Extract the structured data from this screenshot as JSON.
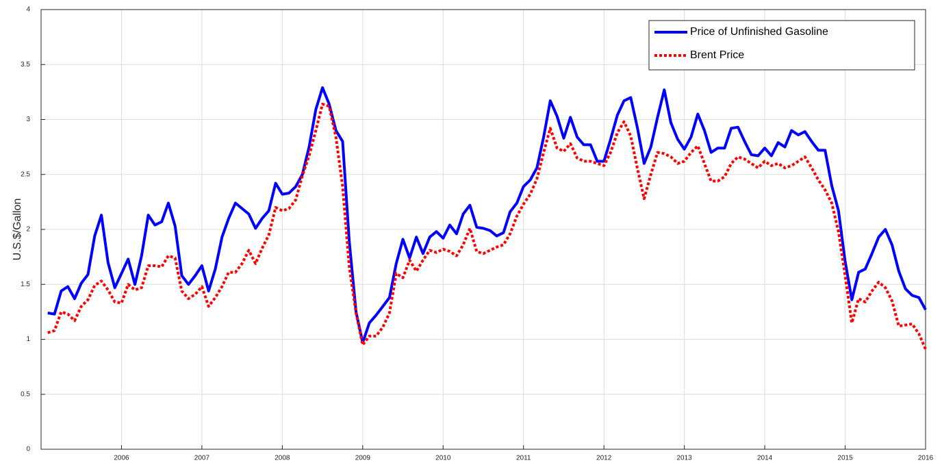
{
  "chart_data": {
    "type": "line",
    "ylabel": "U.S.$/Gallon",
    "xlim": [
      2005,
      2016
    ],
    "ylim": [
      0,
      4
    ],
    "xticks": [
      2006,
      2007,
      2008,
      2009,
      2010,
      2011,
      2012,
      2013,
      2014,
      2015,
      2016
    ],
    "yticks": [
      0,
      0.5,
      1,
      1.5,
      2,
      2.5,
      3,
      3.5,
      4
    ],
    "grid": true,
    "legend": "upper right",
    "x": [
      2005.083,
      2005.167,
      2005.25,
      2005.333,
      2005.417,
      2005.5,
      2005.583,
      2005.667,
      2005.75,
      2005.833,
      2005.917,
      2006,
      2006.083,
      2006.167,
      2006.25,
      2006.333,
      2006.417,
      2006.5,
      2006.583,
      2006.667,
      2006.75,
      2006.833,
      2006.917,
      2007,
      2007.083,
      2007.167,
      2007.25,
      2007.333,
      2007.417,
      2007.5,
      2007.583,
      2007.667,
      2007.75,
      2007.833,
      2007.917,
      2008,
      2008.083,
      2008.167,
      2008.25,
      2008.333,
      2008.417,
      2008.5,
      2008.583,
      2008.667,
      2008.75,
      2008.833,
      2008.917,
      2009,
      2009.083,
      2009.167,
      2009.25,
      2009.333,
      2009.417,
      2009.5,
      2009.583,
      2009.667,
      2009.75,
      2009.833,
      2009.917,
      2010,
      2010.083,
      2010.167,
      2010.25,
      2010.333,
      2010.417,
      2010.5,
      2010.583,
      2010.667,
      2010.75,
      2010.833,
      2010.917,
      2011,
      2011.083,
      2011.167,
      2011.25,
      2011.333,
      2011.417,
      2011.5,
      2011.583,
      2011.667,
      2011.75,
      2011.833,
      2011.917,
      2012,
      2012.083,
      2012.167,
      2012.25,
      2012.333,
      2012.417,
      2012.5,
      2012.583,
      2012.667,
      2012.75,
      2012.833,
      2012.917,
      2013,
      2013.083,
      2013.167,
      2013.25,
      2013.333,
      2013.417,
      2013.5,
      2013.583,
      2013.667,
      2013.75,
      2013.833,
      2013.917,
      2014,
      2014.083,
      2014.167,
      2014.25,
      2014.333,
      2014.417,
      2014.5,
      2014.583,
      2014.667,
      2014.75,
      2014.833,
      2014.917,
      2015,
      2015.083,
      2015.167,
      2015.25,
      2015.333,
      2015.417,
      2015.5,
      2015.583,
      2015.667,
      2015.75,
      2015.833,
      2015.917,
      2016
    ],
    "series": [
      {
        "name": "Price of Unfinished Gasoline",
        "color": "#0000ff",
        "dash": "solid",
        "values": [
          1.24,
          1.23,
          1.44,
          1.48,
          1.37,
          1.51,
          1.59,
          1.94,
          2.13,
          1.7,
          1.47,
          1.6,
          1.73,
          1.5,
          1.76,
          2.13,
          2.04,
          2.07,
          2.24,
          2.03,
          1.58,
          1.5,
          1.58,
          1.67,
          1.44,
          1.64,
          1.93,
          2.1,
          2.24,
          2.19,
          2.14,
          2.01,
          2.1,
          2.17,
          2.42,
          2.32,
          2.33,
          2.39,
          2.5,
          2.75,
          3.09,
          3.29,
          3.14,
          2.9,
          2.8,
          1.89,
          1.25,
          0.97,
          1.15,
          1.22,
          1.3,
          1.38,
          1.69,
          1.91,
          1.74,
          1.93,
          1.78,
          1.93,
          1.98,
          1.92,
          2.04,
          1.96,
          2.14,
          2.22,
          2.02,
          2.01,
          1.99,
          1.94,
          1.97,
          2.16,
          2.24,
          2.39,
          2.45,
          2.56,
          2.84,
          3.17,
          3.03,
          2.83,
          3.02,
          2.84,
          2.77,
          2.77,
          2.62,
          2.62,
          2.82,
          3.04,
          3.17,
          3.2,
          2.92,
          2.6,
          2.75,
          3.02,
          3.27,
          2.97,
          2.82,
          2.73,
          2.84,
          3.05,
          2.9,
          2.7,
          2.74,
          2.74,
          2.92,
          2.93,
          2.8,
          2.68,
          2.67,
          2.74,
          2.67,
          2.79,
          2.75,
          2.9,
          2.86,
          2.89,
          2.8,
          2.72,
          2.72,
          2.4,
          2.17,
          1.71,
          1.36,
          1.61,
          1.64,
          1.78,
          1.93,
          2.0,
          1.86,
          1.62,
          1.46,
          1.4,
          1.38,
          1.27
        ]
      },
      {
        "name": "Brent Price",
        "color": "#ff0000",
        "dash": "dotted",
        "values": [
          1.06,
          1.08,
          1.25,
          1.23,
          1.17,
          1.3,
          1.36,
          1.49,
          1.53,
          1.45,
          1.34,
          1.33,
          1.5,
          1.45,
          1.47,
          1.67,
          1.67,
          1.66,
          1.76,
          1.74,
          1.44,
          1.37,
          1.41,
          1.48,
          1.3,
          1.38,
          1.48,
          1.61,
          1.61,
          1.69,
          1.81,
          1.69,
          1.83,
          1.95,
          2.2,
          2.17,
          2.19,
          2.27,
          2.49,
          2.67,
          2.9,
          3.14,
          3.12,
          2.84,
          2.39,
          1.66,
          1.24,
          0.95,
          1.03,
          1.03,
          1.11,
          1.24,
          1.6,
          1.56,
          1.72,
          1.62,
          1.72,
          1.81,
          1.79,
          1.82,
          1.8,
          1.76,
          1.86,
          2.01,
          1.8,
          1.78,
          1.81,
          1.84,
          1.86,
          1.96,
          2.12,
          2.23,
          2.32,
          2.46,
          2.7,
          2.92,
          2.74,
          2.71,
          2.78,
          2.65,
          2.62,
          2.62,
          2.6,
          2.58,
          2.7,
          2.88,
          2.98,
          2.85,
          2.55,
          2.28,
          2.5,
          2.7,
          2.69,
          2.66,
          2.6,
          2.62,
          2.7,
          2.76,
          2.6,
          2.44,
          2.44,
          2.48,
          2.6,
          2.66,
          2.64,
          2.6,
          2.56,
          2.62,
          2.58,
          2.6,
          2.56,
          2.58,
          2.62,
          2.66,
          2.56,
          2.45,
          2.36,
          2.24,
          1.98,
          1.58,
          1.15,
          1.37,
          1.34,
          1.44,
          1.52,
          1.47,
          1.35,
          1.12,
          1.13,
          1.14,
          1.05,
          0.91
        ]
      }
    ]
  }
}
